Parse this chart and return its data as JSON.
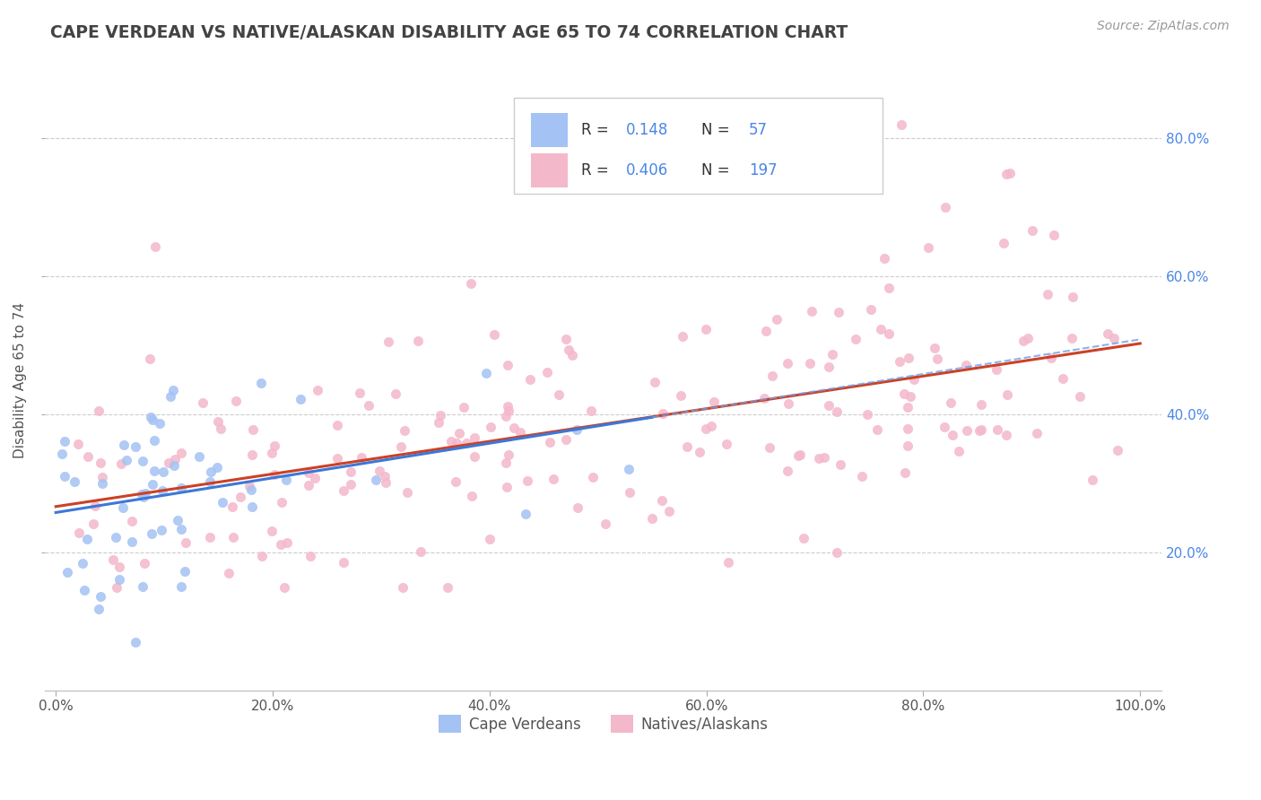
{
  "title": "CAPE VERDEAN VS NATIVE/ALASKAN DISABILITY AGE 65 TO 74 CORRELATION CHART",
  "source": "Source: ZipAtlas.com",
  "ylabel": "Disability Age 65 to 74",
  "blue_color": "#a4c2f4",
  "pink_color": "#f4b8cb",
  "blue_line_color": "#3c78d8",
  "pink_line_color": "#cc4125",
  "blue_dash_color": "#6d9eeb",
  "background_color": "#ffffff",
  "grid_color": "#cccccc",
  "title_color": "#434343",
  "source_color": "#999999",
  "ytick_color": "#4a86e8",
  "legend_r1": "R = ",
  "legend_v1": "0.148",
  "legend_n1_label": "N = ",
  "legend_n1": "57",
  "legend_r2": "R = ",
  "legend_v2": "0.406",
  "legend_n2_label": "N = ",
  "legend_n2": "197"
}
